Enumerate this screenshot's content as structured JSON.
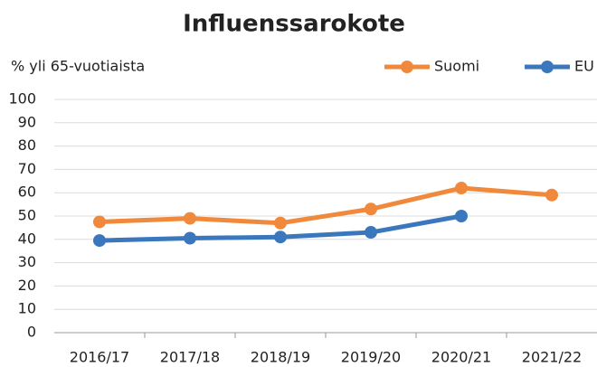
{
  "chart_data": {
    "type": "line",
    "title": "Influenssarokote",
    "y_label": "% yli 65-vuotiaista",
    "categories": [
      "2016/17",
      "2017/18",
      "2018/19",
      "2019/20",
      "2020/21",
      "2021/22"
    ],
    "series": [
      {
        "name": "Suomi",
        "color": "#f0893b",
        "values": [
          47.5,
          49,
          47,
          53,
          62,
          59
        ]
      },
      {
        "name": "EU",
        "color": "#3a77bd",
        "values": [
          39.5,
          40.5,
          41,
          43,
          50,
          null
        ]
      }
    ],
    "ylim": [
      0,
      100
    ],
    "yticks": [
      0,
      10,
      20,
      30,
      40,
      50,
      60,
      70,
      80,
      90,
      100
    ],
    "grid": true,
    "legend": "top-right"
  }
}
